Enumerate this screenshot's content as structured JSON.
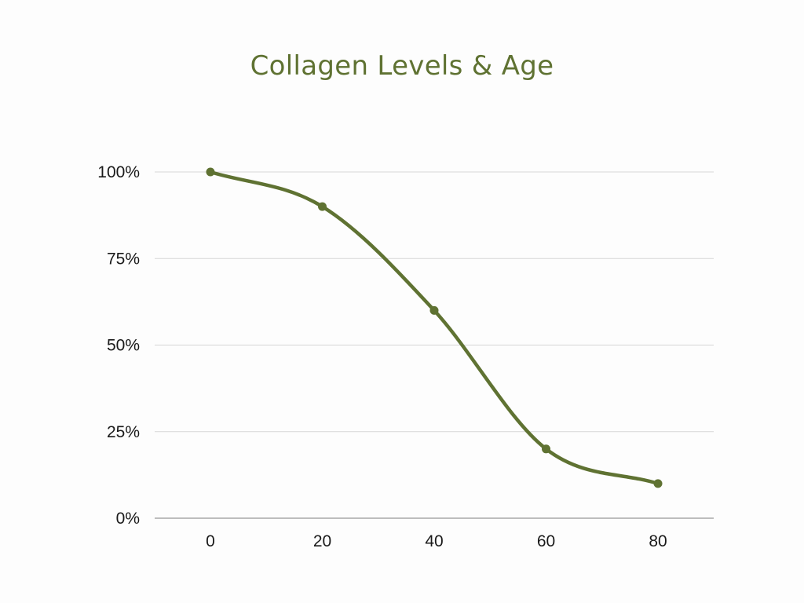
{
  "chart_data": {
    "type": "line",
    "title": "Collagen Levels & Age",
    "xlabel": "",
    "ylabel": "",
    "x": [
      0,
      20,
      40,
      60,
      80
    ],
    "series": [
      {
        "values": [
          100,
          90,
          60,
          20,
          10
        ]
      }
    ],
    "x_ticks": [
      "0",
      "20",
      "40",
      "60",
      "80"
    ],
    "y_ticks": [
      {
        "value": 0,
        "label": "0%"
      },
      {
        "value": 25,
        "label": "25%"
      },
      {
        "value": 50,
        "label": "50%"
      },
      {
        "value": 75,
        "label": "75%"
      },
      {
        "value": 100,
        "label": "100%"
      }
    ],
    "ylim": [
      0,
      100
    ],
    "grid": true,
    "line_style": "smooth",
    "markers": true,
    "colors": {
      "series": "#5f7232",
      "grid": "#d6d6d6",
      "axis": "#a8a8a8"
    }
  }
}
